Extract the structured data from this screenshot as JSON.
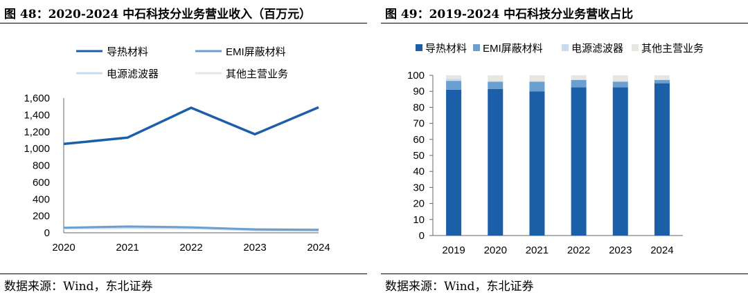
{
  "left": {
    "title": "图 48：2020-2024 中石科技分业务营业收入（百万元）",
    "source": "数据来源：Wind，东北证券"
  },
  "right": {
    "title": "图 49：2019-2024 中石科技分业务营收占比",
    "source": "数据来源：Wind，东北证券"
  },
  "colors": {
    "导热材料": "#1a5fa8",
    "EMI屏蔽材料": "#6a9fd0",
    "电源滤波器": "#c9dcef",
    "其他主营业务": "#e7e6e0"
  },
  "chart_data": [
    {
      "type": "line",
      "title": "2020-2024 中石科技分业务营业收入（百万元）",
      "x": [
        "2020",
        "2021",
        "2022",
        "2023",
        "2024"
      ],
      "ylim": [
        0,
        1600
      ],
      "yticks": [
        "0",
        "200",
        "400",
        "600",
        "800",
        "1,000",
        "1,200",
        "1,400",
        "1,600"
      ],
      "ytick_values": [
        0,
        200,
        400,
        600,
        800,
        1000,
        1200,
        1400,
        1600
      ],
      "grid": false,
      "legend_position": "top",
      "series": [
        {
          "name": "导热材料",
          "values": [
            1055,
            1130,
            1485,
            1170,
            1490
          ]
        },
        {
          "name": "EMI屏蔽材料",
          "values": [
            60,
            75,
            65,
            40,
            35
          ]
        },
        {
          "name": "电源滤波器",
          "values": [
            55,
            65,
            55,
            30,
            25
          ]
        },
        {
          "name": "其他主营业务",
          "values": [
            50,
            55,
            50,
            45,
            40
          ]
        }
      ]
    },
    {
      "type": "bar",
      "stacked": true,
      "title": "2019-2024 中石科技分业务营收占比",
      "categories": [
        "2019",
        "2020",
        "2021",
        "2022",
        "2023",
        "2024"
      ],
      "ylim": [
        0,
        100
      ],
      "yticks": [
        "0",
        "10",
        "20",
        "30",
        "40",
        "50",
        "60",
        "70",
        "80",
        "90",
        "100"
      ],
      "ytick_values": [
        0,
        10,
        20,
        30,
        40,
        50,
        60,
        70,
        80,
        90,
        100
      ],
      "grid": false,
      "legend_position": "top",
      "series": [
        {
          "name": "导热材料",
          "values": [
            91,
            91.5,
            90,
            92.5,
            92.5,
            95
          ]
        },
        {
          "name": "EMI屏蔽材料",
          "values": [
            5.5,
            4.5,
            6,
            4.5,
            3.5,
            2
          ]
        },
        {
          "name": "电源滤波器",
          "values": [
            1.5,
            0.5,
            0.5,
            0.5,
            0.5,
            0.5
          ]
        },
        {
          "name": "其他主营业务",
          "values": [
            2,
            3.5,
            3.5,
            2.5,
            3.5,
            2.5
          ]
        }
      ]
    }
  ]
}
